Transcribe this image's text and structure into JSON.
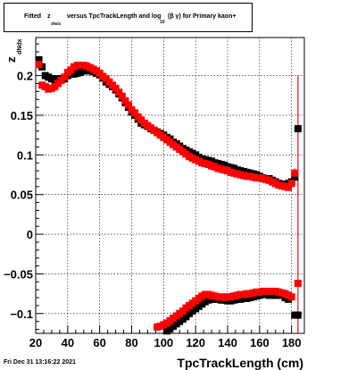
{
  "title": {
    "fitted": "Fitted",
    "z": "z",
    "z_sub": "dNdx",
    "versus": "versus TpcTrackLength and log",
    "log_sub": "10",
    "tail": "(β γ) for Primary kaon+"
  },
  "timestamp": "Fri Dec 31 13:16:22 2021",
  "chart_data": {
    "type": "scatter",
    "xlabel": "TpcTrackLength (cm)",
    "ylabel": "z",
    "ylabel_sub": "dNdx",
    "xlim": [
      20,
      188
    ],
    "ylim": [
      -0.125,
      0.248
    ],
    "x_ticks": [
      20,
      40,
      60,
      80,
      100,
      120,
      140,
      160,
      180
    ],
    "y_ticks": [
      -0.1,
      -0.05,
      0,
      0.05,
      0.1,
      0.15,
      0.2
    ],
    "y_tick_labels": [
      "−0.1",
      "−0.05",
      "0",
      "0.05",
      "0.1",
      "0.15",
      "0.2"
    ],
    "grid": true,
    "series": [
      {
        "color": "#000000",
        "marker": "square",
        "points": [
          [
            22,
            0.22
          ],
          [
            24,
            0.211
          ],
          [
            26,
            0.2
          ],
          [
            28,
            0.198
          ],
          [
            30,
            0.196
          ],
          [
            32,
            0.194
          ],
          [
            34,
            0.196
          ],
          [
            36,
            0.196
          ],
          [
            38,
            0.196
          ],
          [
            40,
            0.2
          ],
          [
            42,
            0.202
          ],
          [
            44,
            0.202
          ],
          [
            46,
            0.203
          ],
          [
            48,
            0.204
          ],
          [
            50,
            0.206
          ],
          [
            52,
            0.206
          ],
          [
            54,
            0.206
          ],
          [
            56,
            0.205
          ],
          [
            58,
            0.203
          ],
          [
            60,
            0.201
          ],
          [
            62,
            0.197
          ],
          [
            64,
            0.192
          ],
          [
            66,
            0.189
          ],
          [
            68,
            0.186
          ],
          [
            70,
            0.182
          ],
          [
            72,
            0.177
          ],
          [
            74,
            0.172
          ],
          [
            76,
            0.166
          ],
          [
            78,
            0.16
          ],
          [
            80,
            0.154
          ],
          [
            82,
            0.15
          ],
          [
            84,
            0.145
          ],
          [
            86,
            0.14
          ],
          [
            88,
            0.138
          ],
          [
            90,
            0.136
          ],
          [
            92,
            0.133
          ],
          [
            94,
            0.131
          ],
          [
            96,
            0.129
          ],
          [
            98,
            0.127
          ],
          [
            100,
            0.125
          ],
          [
            102,
            0.122
          ],
          [
            104,
            0.12
          ],
          [
            106,
            0.116
          ],
          [
            108,
            0.114
          ],
          [
            110,
            0.111
          ],
          [
            112,
            0.108
          ],
          [
            114,
            0.106
          ],
          [
            116,
            0.104
          ],
          [
            118,
            0.102
          ],
          [
            120,
            0.1
          ],
          [
            122,
            0.097
          ],
          [
            124,
            0.095
          ],
          [
            126,
            0.094
          ],
          [
            128,
            0.093
          ],
          [
            130,
            0.092
          ],
          [
            132,
            0.09
          ],
          [
            134,
            0.089
          ],
          [
            136,
            0.088
          ],
          [
            138,
            0.087
          ],
          [
            140,
            0.085
          ],
          [
            142,
            0.084
          ],
          [
            144,
            0.083
          ],
          [
            146,
            0.081
          ],
          [
            148,
            0.08
          ],
          [
            150,
            0.079
          ],
          [
            152,
            0.078
          ],
          [
            154,
            0.077
          ],
          [
            156,
            0.076
          ],
          [
            158,
            0.075
          ],
          [
            160,
            0.073
          ],
          [
            162,
            0.071
          ],
          [
            164,
            0.07
          ],
          [
            166,
            0.07
          ],
          [
            168,
            0.068
          ],
          [
            170,
            0.066
          ],
          [
            172,
            0.064
          ],
          [
            174,
            0.063
          ],
          [
            176,
            0.062
          ],
          [
            178,
            0.064
          ],
          [
            180,
            0.066
          ],
          [
            182,
            0.072
          ],
          [
            184,
            0.133
          ],
          [
            102,
            -0.122
          ],
          [
            104,
            -0.119
          ],
          [
            106,
            -0.116
          ],
          [
            108,
            -0.113
          ],
          [
            110,
            -0.11
          ],
          [
            112,
            -0.107
          ],
          [
            114,
            -0.104
          ],
          [
            116,
            -0.1
          ],
          [
            118,
            -0.097
          ],
          [
            120,
            -0.094
          ],
          [
            122,
            -0.091
          ],
          [
            124,
            -0.088
          ],
          [
            126,
            -0.085
          ],
          [
            128,
            -0.083
          ],
          [
            130,
            -0.082
          ],
          [
            132,
            -0.082
          ],
          [
            134,
            -0.082
          ],
          [
            136,
            -0.083
          ],
          [
            138,
            -0.083
          ],
          [
            140,
            -0.084
          ],
          [
            142,
            -0.084
          ],
          [
            144,
            -0.083
          ],
          [
            146,
            -0.082
          ],
          [
            148,
            -0.082
          ],
          [
            150,
            -0.081
          ],
          [
            152,
            -0.081
          ],
          [
            154,
            -0.08
          ],
          [
            156,
            -0.079
          ],
          [
            158,
            -0.078
          ],
          [
            160,
            -0.077
          ],
          [
            162,
            -0.076
          ],
          [
            164,
            -0.076
          ],
          [
            166,
            -0.077
          ],
          [
            168,
            -0.077
          ],
          [
            170,
            -0.077
          ],
          [
            172,
            -0.076
          ],
          [
            174,
            -0.077
          ],
          [
            176,
            -0.08
          ],
          [
            178,
            -0.082
          ],
          [
            182,
            -0.102
          ],
          [
            184,
            -0.102
          ]
        ]
      },
      {
        "color": "#ff0000",
        "marker": "square",
        "points": [
          [
            22,
            0.214
          ],
          [
            24,
            0.188
          ],
          [
            26,
            0.186
          ],
          [
            28,
            0.183
          ],
          [
            30,
            0.184
          ],
          [
            32,
            0.186
          ],
          [
            34,
            0.19
          ],
          [
            36,
            0.194
          ],
          [
            38,
            0.198
          ],
          [
            40,
            0.204
          ],
          [
            42,
            0.207
          ],
          [
            44,
            0.211
          ],
          [
            46,
            0.213
          ],
          [
            48,
            0.213
          ],
          [
            50,
            0.213
          ],
          [
            52,
            0.212
          ],
          [
            54,
            0.21
          ],
          [
            56,
            0.208
          ],
          [
            58,
            0.206
          ],
          [
            60,
            0.203
          ],
          [
            62,
            0.199
          ],
          [
            64,
            0.196
          ],
          [
            66,
            0.192
          ],
          [
            68,
            0.188
          ],
          [
            70,
            0.184
          ],
          [
            72,
            0.179
          ],
          [
            74,
            0.174
          ],
          [
            76,
            0.168
          ],
          [
            78,
            0.163
          ],
          [
            80,
            0.157
          ],
          [
            82,
            0.153
          ],
          [
            84,
            0.148
          ],
          [
            86,
            0.144
          ],
          [
            88,
            0.14
          ],
          [
            90,
            0.137
          ],
          [
            92,
            0.134
          ],
          [
            94,
            0.131
          ],
          [
            96,
            0.128
          ],
          [
            98,
            0.125
          ],
          [
            100,
            0.122
          ],
          [
            102,
            0.119
          ],
          [
            104,
            0.116
          ],
          [
            106,
            0.113
          ],
          [
            108,
            0.11
          ],
          [
            110,
            0.107
          ],
          [
            112,
            0.104
          ],
          [
            114,
            0.101
          ],
          [
            116,
            0.098
          ],
          [
            118,
            0.096
          ],
          [
            120,
            0.094
          ],
          [
            122,
            0.092
          ],
          [
            124,
            0.09
          ],
          [
            126,
            0.089
          ],
          [
            128,
            0.088
          ],
          [
            130,
            0.086
          ],
          [
            132,
            0.085
          ],
          [
            134,
            0.083
          ],
          [
            136,
            0.082
          ],
          [
            138,
            0.081
          ],
          [
            140,
            0.08
          ],
          [
            142,
            0.078
          ],
          [
            144,
            0.077
          ],
          [
            146,
            0.076
          ],
          [
            148,
            0.075
          ],
          [
            150,
            0.074
          ],
          [
            152,
            0.073
          ],
          [
            154,
            0.073
          ],
          [
            156,
            0.072
          ],
          [
            158,
            0.071
          ],
          [
            160,
            0.071
          ],
          [
            162,
            0.07
          ],
          [
            164,
            0.069
          ],
          [
            166,
            0.068
          ],
          [
            168,
            0.066
          ],
          [
            170,
            0.064
          ],
          [
            172,
            0.062
          ],
          [
            174,
            0.061
          ],
          [
            176,
            0.06
          ],
          [
            178,
            0.059
          ],
          [
            180,
            0.064
          ],
          [
            182,
            0.077
          ],
          [
            184,
            -0.062
          ],
          [
            96,
            -0.117
          ],
          [
            98,
            -0.116
          ],
          [
            100,
            -0.114
          ],
          [
            102,
            -0.112
          ],
          [
            104,
            -0.109
          ],
          [
            106,
            -0.106
          ],
          [
            108,
            -0.103
          ],
          [
            110,
            -0.1
          ],
          [
            112,
            -0.097
          ],
          [
            114,
            -0.093
          ],
          [
            116,
            -0.09
          ],
          [
            118,
            -0.087
          ],
          [
            120,
            -0.084
          ],
          [
            122,
            -0.081
          ],
          [
            124,
            -0.078
          ],
          [
            126,
            -0.076
          ],
          [
            128,
            -0.076
          ],
          [
            130,
            -0.077
          ],
          [
            132,
            -0.078
          ],
          [
            134,
            -0.079
          ],
          [
            136,
            -0.079
          ],
          [
            138,
            -0.08
          ],
          [
            140,
            -0.079
          ],
          [
            142,
            -0.079
          ],
          [
            144,
            -0.078
          ],
          [
            146,
            -0.077
          ],
          [
            148,
            -0.076
          ],
          [
            150,
            -0.076
          ],
          [
            152,
            -0.075
          ],
          [
            154,
            -0.075
          ],
          [
            156,
            -0.074
          ],
          [
            158,
            -0.073
          ],
          [
            160,
            -0.073
          ],
          [
            162,
            -0.072
          ],
          [
            164,
            -0.072
          ],
          [
            166,
            -0.072
          ],
          [
            168,
            -0.072
          ],
          [
            170,
            -0.072
          ],
          [
            172,
            -0.073
          ],
          [
            174,
            -0.074
          ],
          [
            176,
            -0.075
          ],
          [
            178,
            -0.077
          ],
          [
            180,
            -0.079
          ]
        ],
        "error_bars": [
          {
            "x": 182,
            "y": 0.077,
            "lo": 0.07,
            "hi": 0.083
          },
          {
            "x": 184,
            "y": -0.062,
            "lo": -0.125,
            "hi": 0.2
          }
        ]
      }
    ]
  }
}
